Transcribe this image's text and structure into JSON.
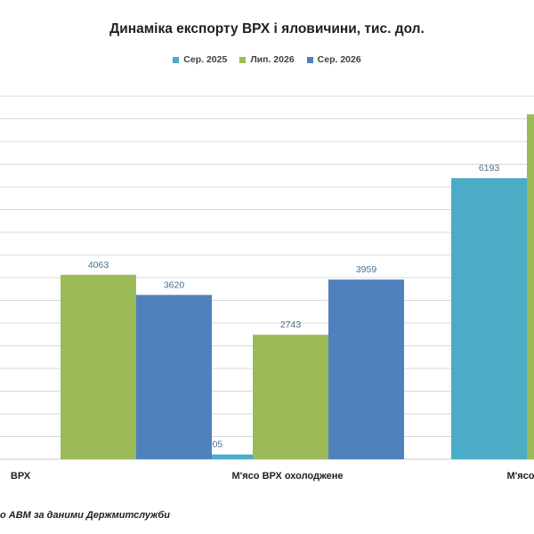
{
  "chart_data": {
    "type": "bar",
    "title": "Динаміка експорту ВРХ і яловичини, тис. дол.",
    "categories": [
      "ВРХ",
      "М'ясо ВРХ охолоджене",
      "М'ясо"
    ],
    "series": [
      {
        "name": "Сер. 2025",
        "color": "#4bacc6",
        "values": [
          null,
          105,
          6193
        ]
      },
      {
        "name": "Лип. 2026",
        "color": "#9bbb59",
        "values": [
          4063,
          2743,
          7600
        ]
      },
      {
        "name": "Сер. 2026",
        "color": "#4f81bd",
        "values": [
          3620,
          3959,
          null
        ]
      }
    ],
    "data_labels": [
      [
        null,
        "105",
        "6193"
      ],
      [
        "4063",
        "2743",
        null
      ],
      [
        "3620",
        "3959",
        null
      ]
    ],
    "category_labels": [
      "ВРХ",
      "М'ясо  ВРХ  охолоджене",
      "М'ясо"
    ],
    "ylim": [
      0,
      8000
    ],
    "grid": true,
    "legend_position": "top-center"
  },
  "source_text": "о АВМ  за даними  Держмитслужби"
}
